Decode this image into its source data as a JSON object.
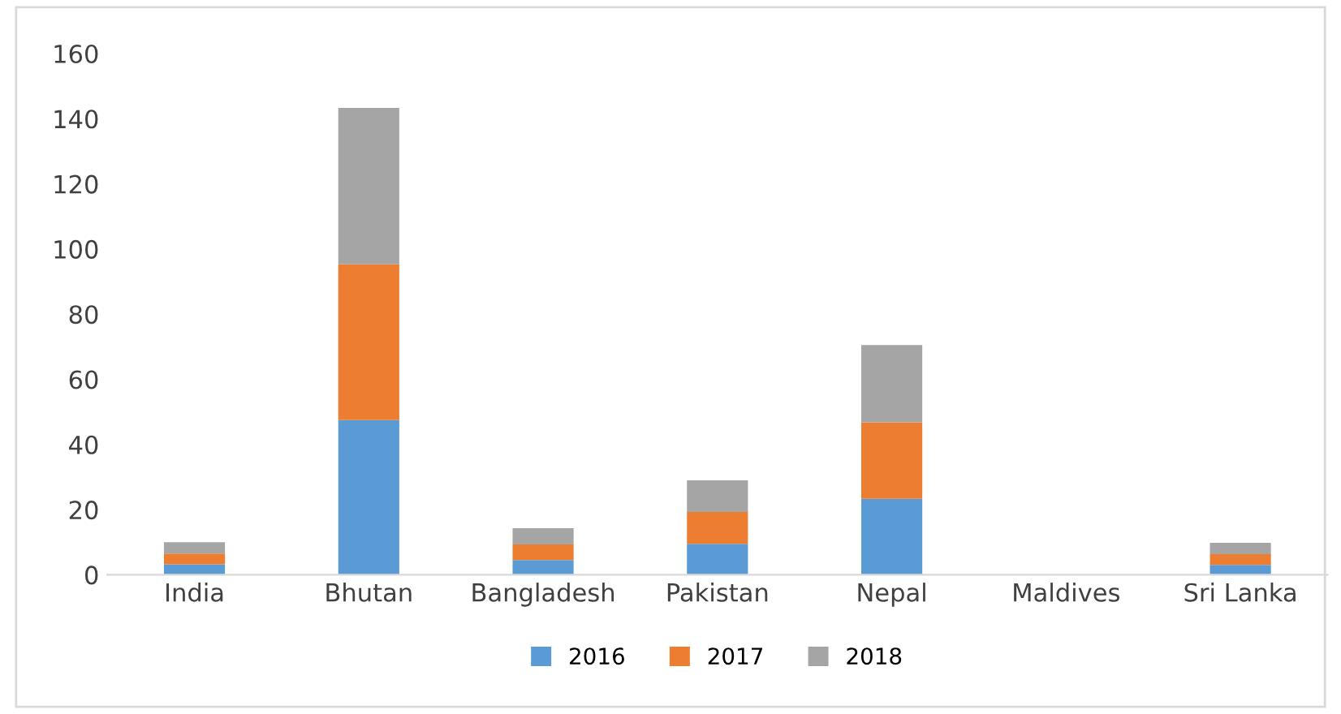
{
  "chart_data": {
    "type": "bar",
    "stacked": true,
    "categories": [
      "India",
      "Bhutan",
      "Bangladesh",
      "Pakistan",
      "Nepal",
      "Maldives",
      "Sri Lanka"
    ],
    "series": [
      {
        "name": "2016",
        "color": "#5b9bd5",
        "values": [
          3.2,
          47.5,
          4.5,
          9.5,
          23.3,
          0,
          3.0
        ]
      },
      {
        "name": "2017",
        "color": "#ed7d31",
        "values": [
          3.3,
          47.8,
          4.8,
          9.8,
          23.5,
          0,
          3.3
        ]
      },
      {
        "name": "2018",
        "color": "#a5a5a5",
        "values": [
          3.5,
          48.0,
          5.0,
          9.7,
          23.7,
          0,
          3.5
        ]
      }
    ],
    "ylim": [
      0,
      160
    ],
    "yticks": [
      0,
      20,
      40,
      60,
      80,
      100,
      120,
      140,
      160
    ],
    "grid": false,
    "legend": "bottom"
  }
}
